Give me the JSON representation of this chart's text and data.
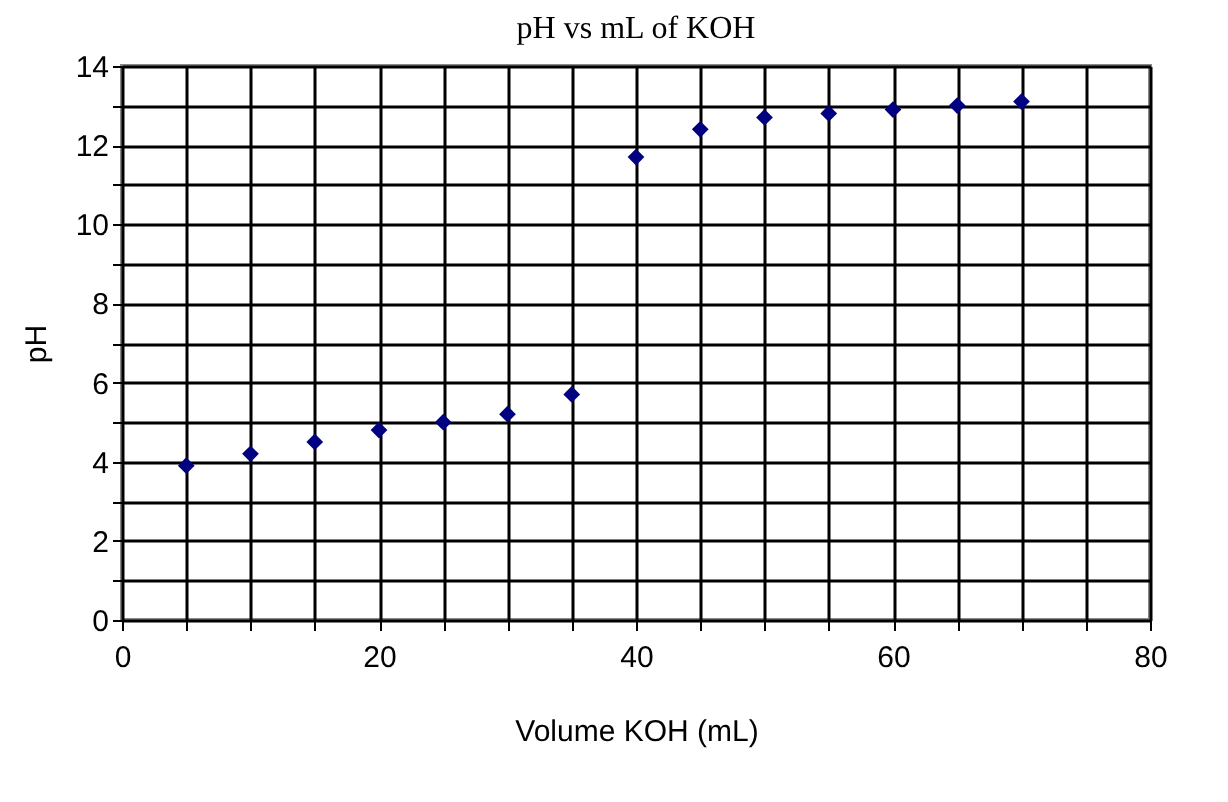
{
  "chart_data": {
    "type": "scatter",
    "title": "pH vs mL of KOH",
    "xlabel": "Volume KOH (mL)",
    "ylabel": "pH",
    "x": [
      5,
      10,
      15,
      20,
      25,
      30,
      35,
      40,
      45,
      50,
      55,
      60,
      65,
      70
    ],
    "series": [
      {
        "color": "#000080",
        "values": [
          3.9,
          4.2,
          4.5,
          4.8,
          5.0,
          5.2,
          5.7,
          11.7,
          12.4,
          12.7,
          12.8,
          12.9,
          13.0,
          13.1
        ]
      }
    ],
    "xlim": [
      0,
      80
    ],
    "ylim": [
      0,
      14
    ],
    "xticks": [
      0,
      {
        "value": 5,
        "label": null
      },
      {
        "value": 10,
        "label": null
      },
      {
        "value": 15,
        "label": null
      },
      20,
      {
        "value": 25,
        "label": null
      },
      {
        "value": 30,
        "label": null
      },
      {
        "value": 35,
        "label": null
      },
      40,
      {
        "value": 45,
        "label": null
      },
      {
        "value": 50,
        "label": null
      },
      {
        "value": 55,
        "label": null
      },
      60,
      {
        "value": 65,
        "label": null
      },
      {
        "value": 70,
        "label": null
      },
      {
        "value": 75,
        "label": null
      },
      80
    ],
    "yticks": [
      0,
      {
        "value": 1,
        "label": null
      },
      2,
      {
        "value": 3,
        "label": null
      },
      4,
      {
        "value": 5,
        "label": null
      },
      6,
      {
        "value": 7,
        "label": null
      },
      8,
      {
        "value": 9,
        "label": null
      },
      10,
      {
        "value": 11,
        "label": null
      },
      12,
      {
        "value": 13,
        "label": null
      },
      14
    ],
    "grid": true,
    "marker": "diamond"
  }
}
